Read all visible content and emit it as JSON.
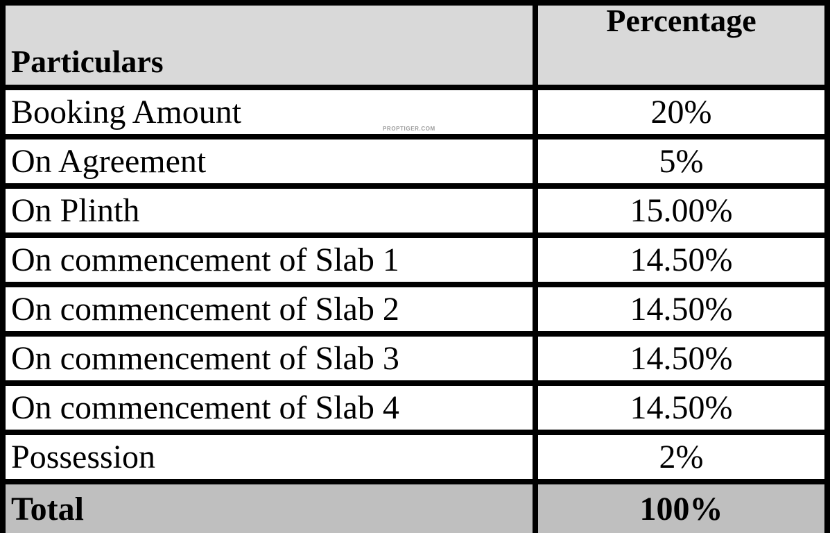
{
  "colors": {
    "header_bg": "#d9d9d9",
    "total_bg": "#bfbfbf",
    "border": "#000000",
    "text": "#000000",
    "row_bg": "#ffffff"
  },
  "watermark": "PROPTIGER.COM",
  "chart_data": {
    "type": "table",
    "title": "Payment schedule table",
    "columns": [
      "Particulars",
      "Percentage"
    ],
    "rows": [
      {
        "particulars": "Booking Amount",
        "percentage": "20%"
      },
      {
        "particulars": "On Agreement",
        "percentage": "5%"
      },
      {
        "particulars": "On Plinth",
        "percentage": "15.00%"
      },
      {
        "particulars": "On commencement of Slab 1",
        "percentage": "14.50%"
      },
      {
        "particulars": "On commencement of Slab 2",
        "percentage": "14.50%"
      },
      {
        "particulars": "On commencement of Slab 3",
        "percentage": "14.50%"
      },
      {
        "particulars": "On commencement of Slab 4",
        "percentage": "14.50%"
      },
      {
        "particulars": "Possession",
        "percentage": "2%"
      }
    ],
    "numeric_percentages": [
      20,
      5,
      15.0,
      14.5,
      14.5,
      14.5,
      14.5,
      2
    ],
    "total_row": {
      "particulars": "Total",
      "percentage": "100%"
    },
    "total_numeric": 100,
    "layout": {
      "header_bold": true,
      "total_bold": true,
      "grid": true
    }
  }
}
